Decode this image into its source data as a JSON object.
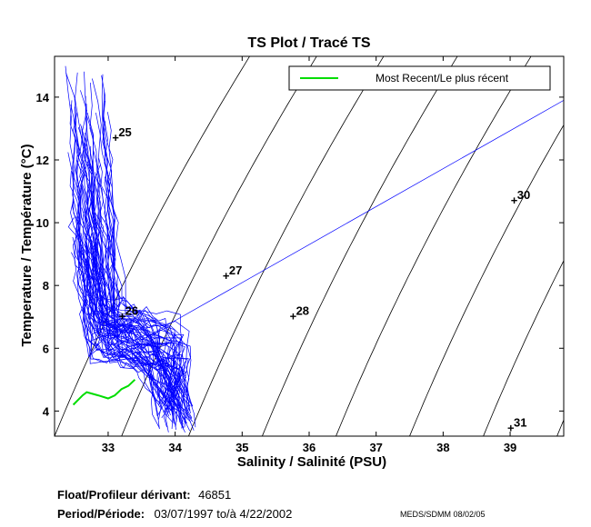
{
  "chart_data": {
    "type": "line",
    "title": "TS Plot / Tracé TS",
    "xlabel": "Salinity / Salinité (PSU)",
    "ylabel": "Temperature / Température (°C)",
    "xlim": [
      32.2,
      39.8
    ],
    "ylim": [
      3.2,
      15.3
    ],
    "xticks": [
      33,
      34,
      35,
      36,
      37,
      38,
      39
    ],
    "yticks": [
      4,
      6,
      8,
      10,
      12,
      14
    ],
    "grid": false,
    "legend": {
      "placement": "top-right",
      "entries": [
        {
          "label": "Most Recent/Le plus récent",
          "color": "#00dd00"
        }
      ]
    },
    "colors": {
      "profiles": "#0000ff",
      "most_recent": "#00dd00",
      "isopycnals": "#000000"
    },
    "isopycnals": [
      {
        "sigma": "25",
        "label_at": [
          33.1,
          12.7
        ]
      },
      {
        "sigma": "26",
        "label_at": [
          33.2,
          7.0
        ]
      },
      {
        "sigma": "27",
        "label_at": [
          34.75,
          8.3
        ]
      },
      {
        "sigma": "28",
        "label_at": [
          35.75,
          7.0
        ]
      },
      {
        "sigma": "30",
        "label_at": [
          39.05,
          10.7
        ]
      },
      {
        "sigma": "31",
        "label_at": [
          39.0,
          3.45
        ]
      }
    ],
    "series": [
      {
        "name": "Most Recent/Le plus récent",
        "x": [
          32.48,
          32.62,
          32.68,
          32.85,
          33.0,
          33.1,
          33.2,
          33.3,
          33.4
        ],
        "y": [
          4.2,
          4.5,
          4.6,
          4.5,
          4.4,
          4.5,
          4.7,
          4.8,
          5.0
        ]
      }
    ]
  },
  "footer": {
    "float_label": "Float/Profileur dérivant:",
    "float_id": "46851",
    "period_label": "Period/Période:",
    "period_value": "03/07/1997  to/à  4/22/2002",
    "credit": "MEDS/SDMM  08/02/05"
  }
}
